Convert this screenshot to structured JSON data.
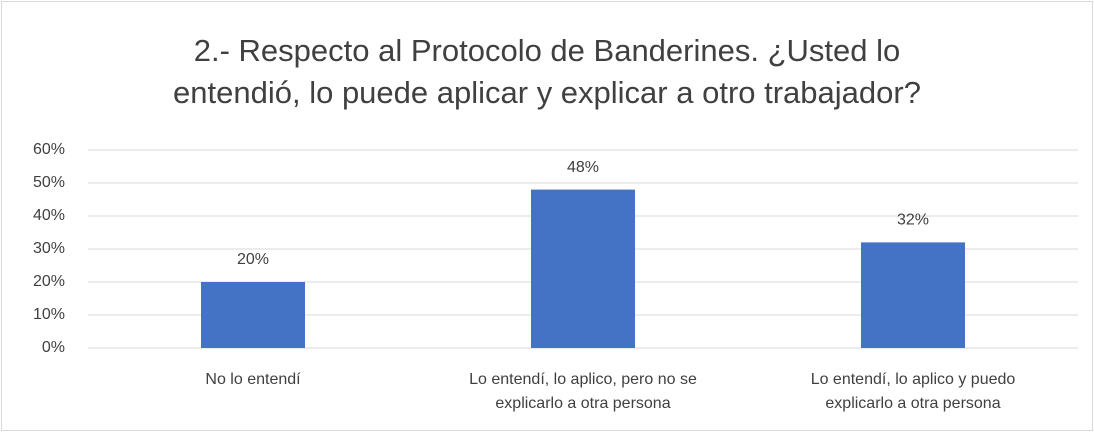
{
  "chart_data": {
    "type": "bar",
    "title": "2.- Respecto al Protocolo de Banderines. ¿Usted lo entendió, lo puede aplicar y explicar a otro trabajador?",
    "categories": [
      "No lo entendí",
      "Lo entendí, lo aplico, pero no se explicarlo a otra persona",
      "Lo entendí, lo aplico y puedo explicarlo a otra persona"
    ],
    "values": [
      20,
      48,
      32
    ],
    "value_labels": [
      "20%",
      "48%",
      "32%"
    ],
    "color": "#4472c4",
    "ylim": [
      0,
      60
    ],
    "yticks": [
      {
        "value": 0,
        "label": "0%"
      },
      {
        "value": 10,
        "label": "10%"
      },
      {
        "value": 20,
        "label": "20%"
      },
      {
        "value": 30,
        "label": "30%"
      },
      {
        "value": 40,
        "label": "40%"
      },
      {
        "value": 50,
        "label": "50%"
      },
      {
        "value": 60,
        "label": "60%"
      }
    ],
    "grid": true
  }
}
